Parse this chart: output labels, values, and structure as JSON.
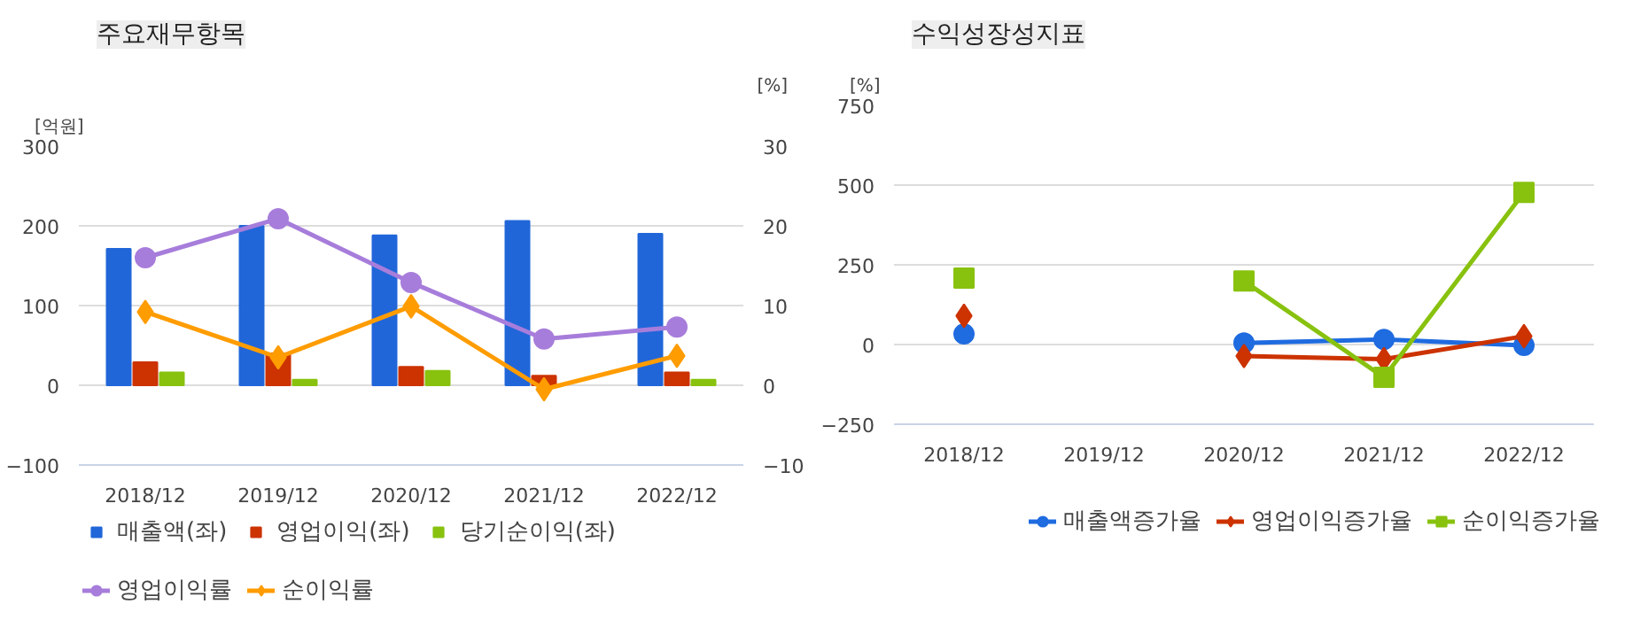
{
  "chart_data": [
    {
      "type": "bar",
      "title": "주요재무항목",
      "ylabel": "[억원]",
      "y2label": "[%]",
      "categories": [
        "2018/12",
        "2019/12",
        "2020/12",
        "2021/12",
        "2022/12"
      ],
      "ylim": [
        -100,
        300
      ],
      "yticks": [
        -100,
        0,
        100,
        200,
        300
      ],
      "y2lim": [
        -10,
        30
      ],
      "y2ticks": [
        -10,
        0,
        10,
        20,
        30
      ],
      "grid": "y",
      "legend": "bottom",
      "series": [
        {
          "name": "매출액(좌)",
          "color": "#2166d9",
          "values": [
            171,
            200,
            188,
            206,
            190
          ]
        },
        {
          "name": "영업이익(좌)",
          "color": "#cc3300",
          "values": [
            29,
            40,
            23,
            12,
            16
          ]
        },
        {
          "name": "당기순이익(좌)",
          "color": "#88c20f",
          "values": [
            16,
            7,
            18,
            null,
            7
          ]
        },
        {
          "name": "영업이익률",
          "type": "line",
          "axis": "y2",
          "marker": "circle",
          "color": "#a77ddb",
          "values": [
            16.0,
            20.9,
            12.9,
            5.8,
            7.3
          ]
        },
        {
          "name": "순이익률",
          "type": "line",
          "axis": "y2",
          "marker": "diamond",
          "color": "#ff9c00",
          "values": [
            9.2,
            3.5,
            9.9,
            -0.5,
            3.7
          ]
        }
      ]
    },
    {
      "type": "line",
      "title": "수익성장성지표",
      "ylabel": "[%]",
      "categories": [
        "2018/12",
        "2019/12",
        "2020/12",
        "2021/12",
        "2022/12"
      ],
      "ylim": [
        -250,
        750
      ],
      "yticks": [
        -250,
        0,
        250,
        500,
        750
      ],
      "grid": "y",
      "legend": "bottom",
      "series": [
        {
          "name": "매출액증가율",
          "marker": "circle",
          "color": "#1f6be0",
          "values": [
            33,
            null,
            5,
            16,
            -3
          ]
        },
        {
          "name": "영업이익증가율",
          "marker": "diamond",
          "color": "#cc3300",
          "values": [
            90,
            null,
            -36,
            -46,
            26
          ]
        },
        {
          "name": "순이익증가율",
          "marker": "square",
          "color": "#88c20f",
          "values": [
            208,
            null,
            199,
            -103,
            477
          ]
        }
      ]
    }
  ]
}
